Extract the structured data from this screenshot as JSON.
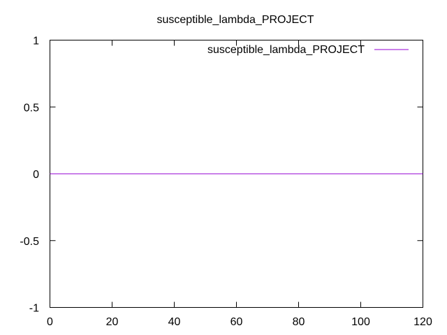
{
  "chart_data": {
    "type": "line",
    "title": "susceptible_lambda_PROJECT",
    "xlabel": "",
    "ylabel": "",
    "xlim": [
      0,
      120
    ],
    "ylim": [
      -1,
      1
    ],
    "x_ticks": [
      0,
      20,
      40,
      60,
      80,
      100,
      120
    ],
    "y_ticks": [
      -1,
      -0.5,
      0,
      0.5,
      1
    ],
    "x_tick_labels": [
      "0",
      "20",
      "40",
      "60",
      "80",
      "100",
      "120"
    ],
    "y_tick_labels": [
      "-1",
      "-0.5",
      "0",
      "0.5",
      "1"
    ],
    "grid": false,
    "legend_position": "top-right",
    "series": [
      {
        "name": "susceptible_lambda_PROJECT",
        "color": "#9400d3",
        "x": [
          0,
          120
        ],
        "y": [
          0,
          0
        ]
      }
    ]
  }
}
